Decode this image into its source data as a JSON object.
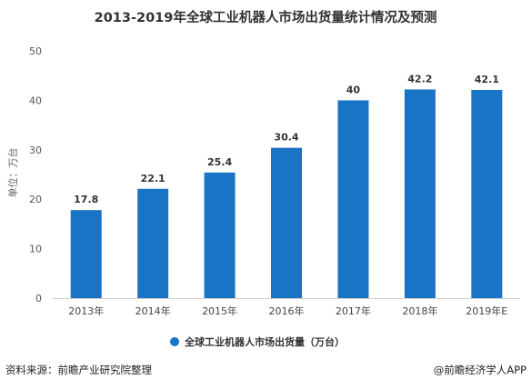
{
  "chart_data": {
    "type": "bar",
    "title": "2013-2019年全球工业机器人市场出货量统计情况及预测",
    "categories": [
      "2013年",
      "2014年",
      "2015年",
      "2016年",
      "2017年",
      "2018年",
      "2019年E"
    ],
    "series": [
      {
        "name": "全球工业机器人市场出货量（万台）",
        "values": [
          17.8,
          22.1,
          25.4,
          30.4,
          40,
          42.2,
          42.1
        ],
        "value_labels": [
          "17.8",
          "22.1",
          "25.4",
          "30.4",
          "40",
          "42.2",
          "42.1"
        ],
        "color": "#1a74c5"
      }
    ],
    "ylabel": "单位：万台",
    "ylim": [
      0,
      50
    ],
    "yticks": [
      "0",
      "10",
      "20",
      "30",
      "40",
      "50"
    ],
    "legend_position": "bottom",
    "grid": false
  },
  "footer": {
    "source": "资料来源：前瞻产业研究院整理",
    "credit": "@前瞻经济学人APP"
  }
}
